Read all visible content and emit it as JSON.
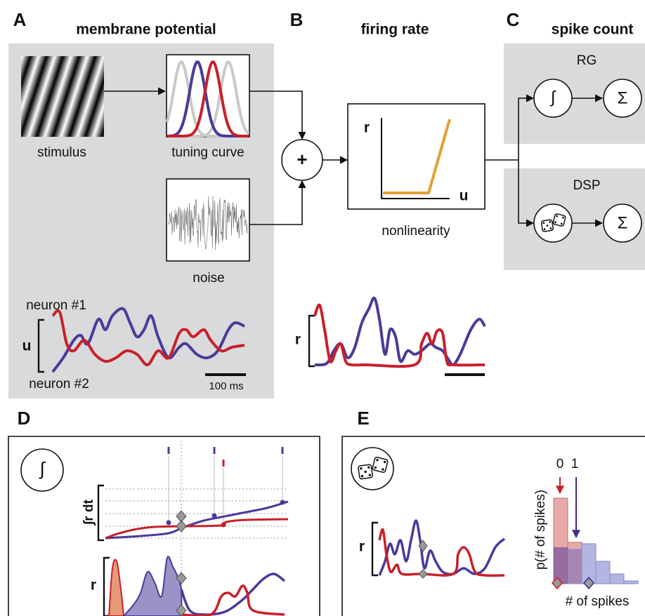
{
  "panels": {
    "A": {
      "letter": "A",
      "title": "membrane potential",
      "stimulus": "stimulus",
      "tuning_curve": "tuning curve",
      "noise": "noise",
      "neuron1": "neuron #1",
      "neuron2": "neuron #2",
      "trace_axis": "u",
      "scale_bar": "100 ms"
    },
    "B": {
      "letter": "B",
      "title": "firing rate",
      "plus": "+",
      "r_axis": "r",
      "u_axis": "u",
      "nonlinearity": "nonlinearity",
      "trace_axis": "r"
    },
    "C": {
      "letter": "C",
      "title": "spike count",
      "rg": "RG",
      "dsp": "DSP",
      "integral": "∫",
      "sum_rg": "Σ",
      "sum_dsp": "Σ"
    },
    "D": {
      "letter": "D",
      "integral": "∫",
      "integral_axis": "∫r dt",
      "trace_axis": "r"
    },
    "E": {
      "letter": "E",
      "count_labels": [
        "0",
        "1"
      ],
      "y_axis": "p(# of spikes)",
      "x_axis": "# of spikes",
      "trace_axis": "r"
    }
  }
}
